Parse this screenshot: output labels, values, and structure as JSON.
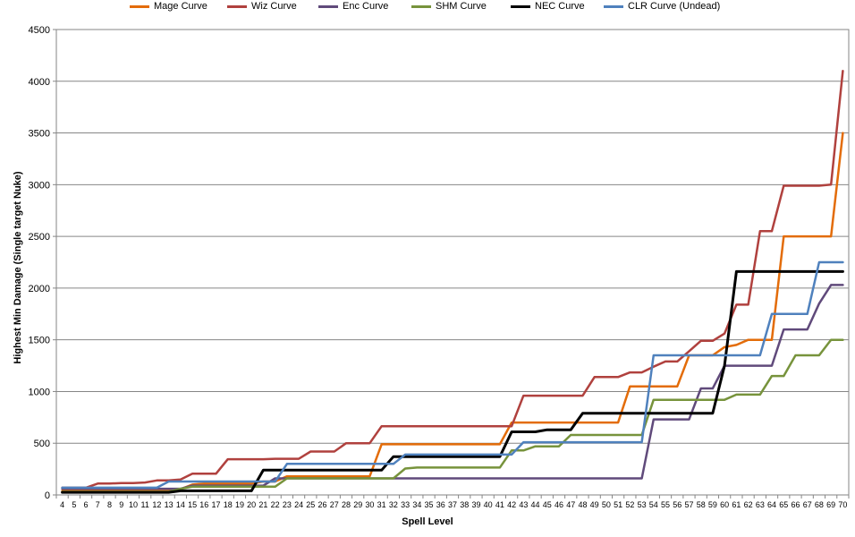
{
  "chart_data": {
    "type": "line",
    "title": "",
    "xlabel": "Spell Level",
    "ylabel": "Highest Min Damage (Single target Nuke)",
    "ylim": [
      0,
      4500
    ],
    "yticks": [
      0,
      500,
      1000,
      1500,
      2000,
      2500,
      3000,
      3500,
      4000,
      4500
    ],
    "grid": "horizontal",
    "legend_position": "top",
    "x": [
      4,
      5,
      6,
      7,
      8,
      9,
      10,
      11,
      12,
      13,
      14,
      15,
      16,
      17,
      18,
      19,
      20,
      21,
      22,
      23,
      24,
      25,
      26,
      27,
      28,
      29,
      30,
      31,
      32,
      33,
      34,
      35,
      36,
      37,
      38,
      39,
      40,
      41,
      42,
      43,
      44,
      45,
      46,
      47,
      48,
      49,
      50,
      51,
      52,
      53,
      54,
      55,
      56,
      57,
      58,
      59,
      60,
      61,
      62,
      63,
      64,
      65,
      66,
      67,
      68,
      69,
      70
    ],
    "series": [
      {
        "name": "Mage Curve",
        "color": "#E36C09",
        "values": [
          40,
          40,
          40,
          40,
          40,
          40,
          40,
          40,
          40,
          40,
          55,
          100,
          110,
          110,
          110,
          110,
          110,
          130,
          130,
          180,
          180,
          180,
          180,
          180,
          180,
          180,
          180,
          490,
          490,
          490,
          490,
          490,
          490,
          490,
          490,
          490,
          490,
          490,
          700,
          700,
          700,
          700,
          700,
          700,
          700,
          700,
          700,
          700,
          1050,
          1050,
          1050,
          1050,
          1050,
          1350,
          1350,
          1350,
          1430,
          1450,
          1500,
          1500,
          1500,
          2500,
          2500,
          2500,
          2500,
          2500,
          3500
        ]
      },
      {
        "name": "Wiz Curve",
        "color": "#B0413E",
        "values": [
          70,
          70,
          70,
          110,
          110,
          115,
          115,
          120,
          140,
          140,
          150,
          205,
          205,
          205,
          345,
          345,
          345,
          345,
          350,
          350,
          350,
          420,
          420,
          420,
          500,
          500,
          500,
          665,
          665,
          665,
          665,
          665,
          665,
          665,
          665,
          665,
          665,
          665,
          665,
          960,
          960,
          960,
          960,
          960,
          960,
          1140,
          1140,
          1140,
          1185,
          1185,
          1240,
          1290,
          1290,
          1390,
          1490,
          1490,
          1560,
          1840,
          1840,
          2550,
          2550,
          2990,
          2990,
          2990,
          2990,
          3000,
          4100
        ]
      },
      {
        "name": "Enc Curve",
        "color": "#604A7B",
        "values": [
          60,
          60,
          60,
          60,
          60,
          60,
          60,
          60,
          60,
          60,
          60,
          90,
          90,
          90,
          90,
          90,
          90,
          90,
          160,
          160,
          160,
          160,
          160,
          160,
          160,
          160,
          160,
          160,
          160,
          160,
          160,
          160,
          160,
          160,
          160,
          160,
          160,
          160,
          160,
          160,
          160,
          160,
          160,
          160,
          160,
          160,
          160,
          160,
          160,
          160,
          730,
          730,
          730,
          730,
          1030,
          1030,
          1250,
          1250,
          1250,
          1250,
          1250,
          1600,
          1600,
          1600,
          1850,
          2030,
          2030
        ]
      },
      {
        "name": "SHM Curve",
        "color": "#77933C",
        "values": [
          30,
          30,
          30,
          30,
          30,
          30,
          30,
          30,
          30,
          30,
          60,
          80,
          80,
          80,
          80,
          80,
          80,
          80,
          80,
          160,
          160,
          160,
          160,
          160,
          160,
          160,
          160,
          160,
          160,
          255,
          265,
          265,
          265,
          265,
          265,
          265,
          265,
          265,
          430,
          430,
          470,
          470,
          470,
          580,
          580,
          580,
          580,
          580,
          580,
          580,
          920,
          920,
          920,
          920,
          920,
          920,
          920,
          970,
          970,
          970,
          1150,
          1150,
          1350,
          1350,
          1350,
          1500,
          1500
        ]
      },
      {
        "name": "NEC Curve",
        "color": "#000000",
        "values": [
          25,
          25,
          25,
          25,
          25,
          25,
          25,
          25,
          25,
          25,
          40,
          40,
          40,
          40,
          40,
          40,
          40,
          240,
          240,
          240,
          240,
          240,
          240,
          240,
          240,
          240,
          240,
          240,
          370,
          370,
          370,
          370,
          370,
          370,
          370,
          370,
          370,
          370,
          610,
          610,
          610,
          630,
          630,
          630,
          790,
          790,
          790,
          790,
          790,
          790,
          790,
          790,
          790,
          790,
          790,
          790,
          1250,
          2160,
          2160,
          2160,
          2160,
          2160,
          2160,
          2160,
          2160,
          2160,
          2160
        ]
      },
      {
        "name": "CLR Curve (Undead)",
        "color": "#4F81BD",
        "values": [
          70,
          70,
          70,
          70,
          70,
          70,
          70,
          70,
          70,
          130,
          130,
          130,
          130,
          130,
          130,
          130,
          130,
          130,
          130,
          300,
          300,
          300,
          300,
          300,
          300,
          300,
          300,
          300,
          300,
          390,
          390,
          390,
          390,
          390,
          390,
          390,
          390,
          390,
          390,
          510,
          510,
          510,
          510,
          510,
          510,
          510,
          510,
          510,
          510,
          510,
          1350,
          1350,
          1350,
          1350,
          1350,
          1350,
          1350,
          1350,
          1350,
          1350,
          1750,
          1750,
          1750,
          1750,
          2250,
          2250,
          2250
        ]
      }
    ]
  }
}
